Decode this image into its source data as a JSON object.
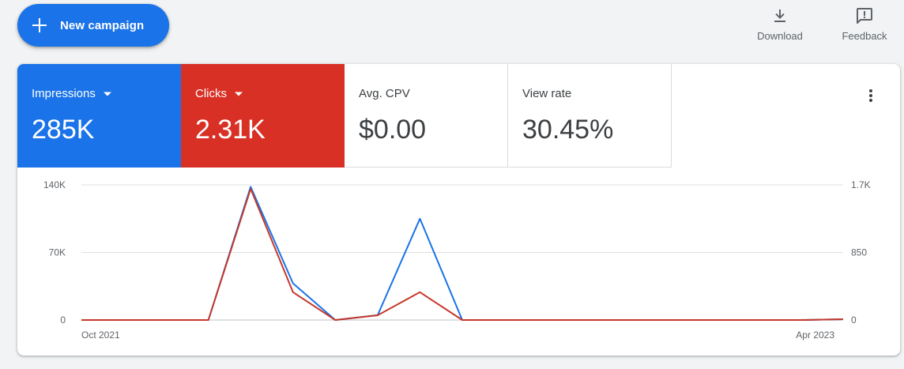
{
  "toolbar": {
    "new_campaign_label": "New campaign",
    "download_label": "Download",
    "feedback_label": "Feedback"
  },
  "metrics": [
    {
      "label": "Impressions",
      "value": "285K",
      "color": "#1a73e8",
      "dropdown": true
    },
    {
      "label": "Clicks",
      "value": "2.31K",
      "color": "#d93025",
      "dropdown": true
    },
    {
      "label": "Avg. CPV",
      "value": "$0.00",
      "dropdown": false
    },
    {
      "label": "View rate",
      "value": "30.45%",
      "dropdown": false
    }
  ],
  "chart_data": {
    "type": "line",
    "x": [
      "Oct 2021",
      "",
      "",
      "",
      "",
      "",
      "",
      "",
      "",
      "",
      "",
      "",
      "",
      "",
      "",
      "",
      "",
      "",
      "Apr 2023"
    ],
    "x_tick_labels": [
      "Oct 2021",
      "Apr 2023"
    ],
    "left_axis": {
      "ticks": [
        "140K",
        "70K",
        "0"
      ],
      "ylim": [
        0,
        140000
      ]
    },
    "right_axis": {
      "ticks": [
        "1.7K",
        "850",
        "0"
      ],
      "ylim": [
        0,
        1700
      ]
    },
    "series": [
      {
        "name": "Impressions",
        "axis": "left",
        "color": "#1a73e8",
        "values": [
          0,
          0,
          0,
          0,
          138000,
          38000,
          0,
          5000,
          105000,
          0,
          0,
          0,
          0,
          0,
          0,
          0,
          0,
          0,
          800
        ]
      },
      {
        "name": "Clicks",
        "axis": "right",
        "color": "#c5392a",
        "values": [
          0,
          0,
          0,
          0,
          1650,
          350,
          0,
          60,
          350,
          0,
          0,
          0,
          0,
          0,
          0,
          0,
          0,
          0,
          10
        ]
      }
    ],
    "grid": true
  }
}
